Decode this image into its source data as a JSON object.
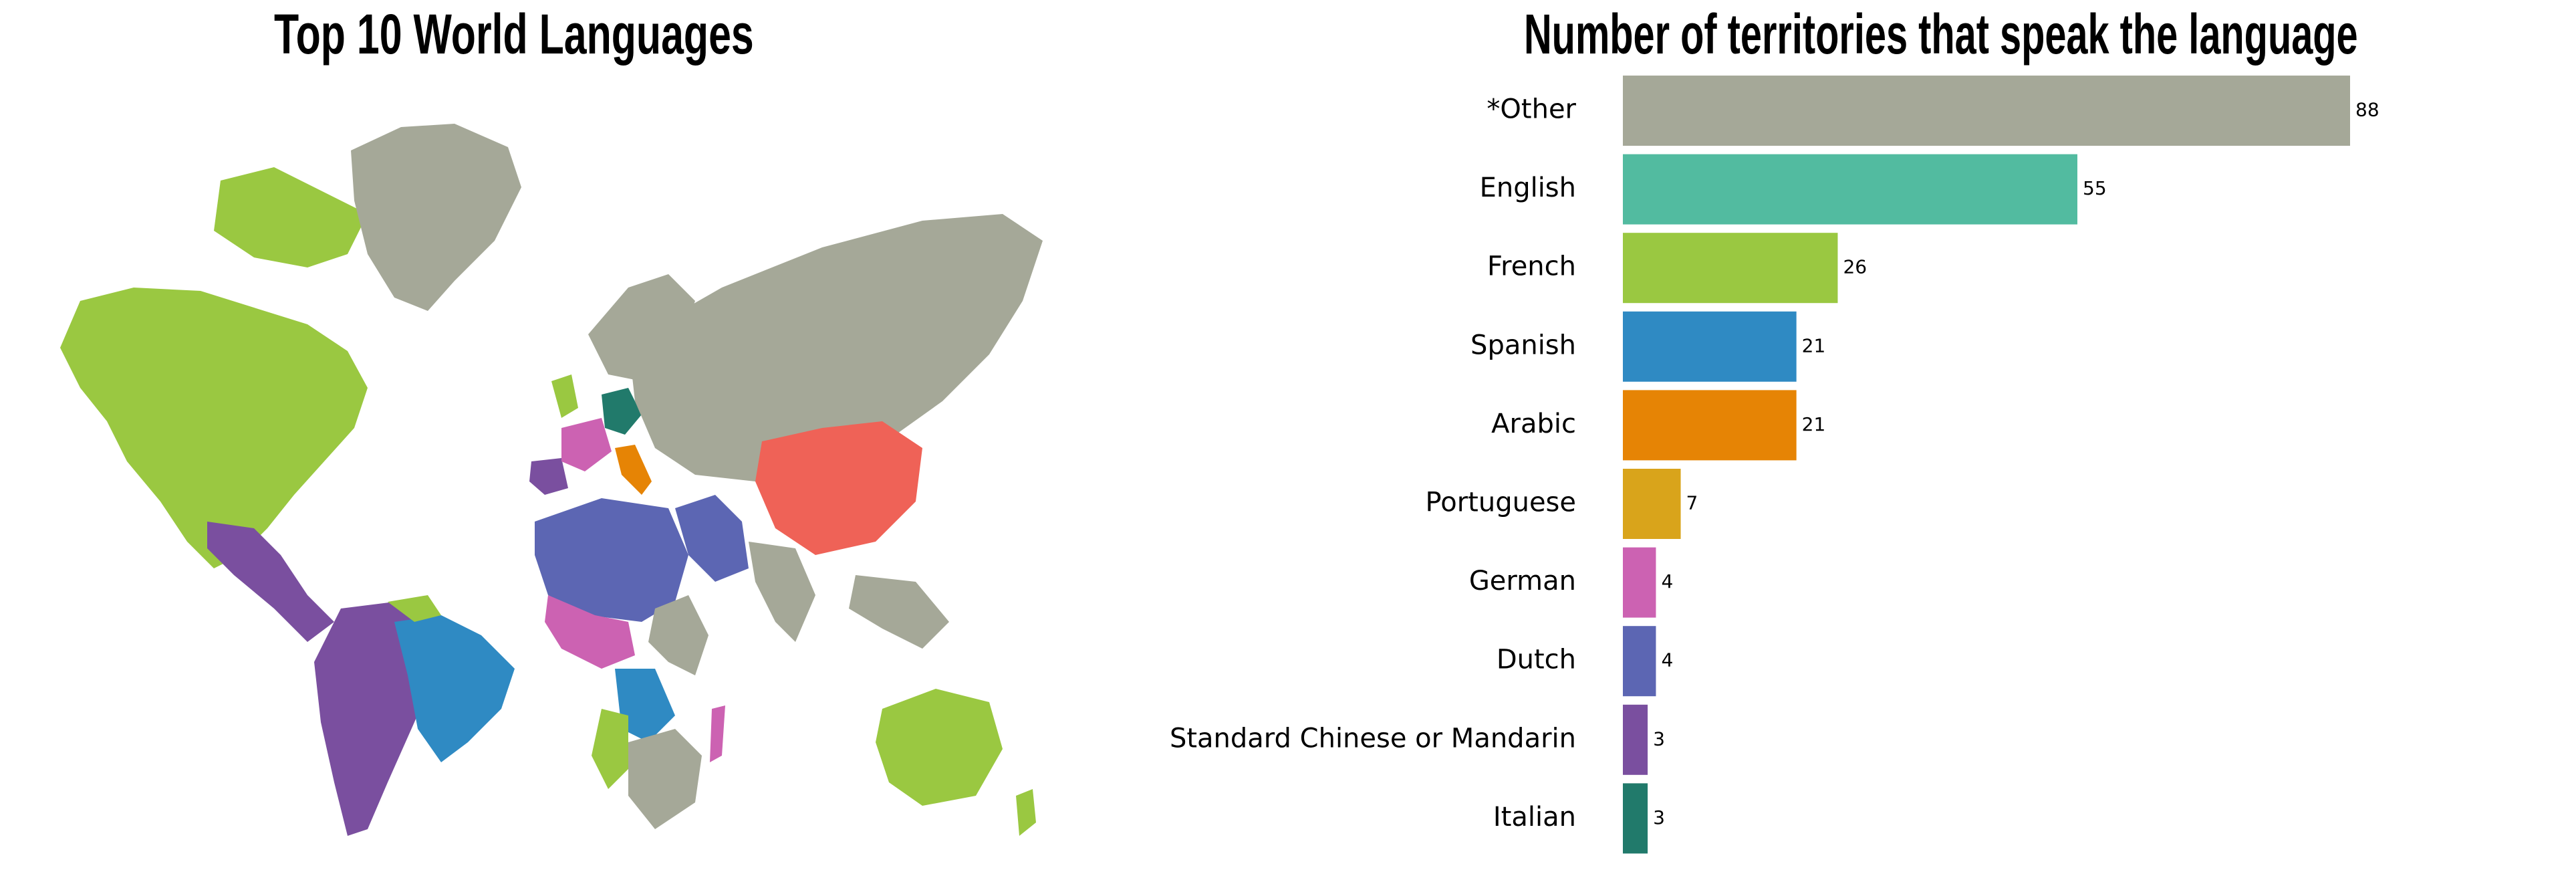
{
  "map": {
    "title": "Top 10 World Languages"
  },
  "colors": {
    "*Other": "#a5a898",
    "English": "#52bba0",
    "French": "#9ac841",
    "Spanish": "#2f8ac3",
    "Arabic": "#e68405",
    "Portuguese": "#d9a41b",
    "German": "#cc62b2",
    "Dutch": "#5c66b3",
    "Standard Chinese or Mandarin": "#7a4f9f",
    "Italian": "#217a6b",
    "Chinese region": "#ef6257"
  },
  "chart_data": {
    "type": "bar",
    "orientation": "horizontal",
    "title": "Number of territories that speak the language",
    "xlabel": "",
    "ylabel": "",
    "grid": false,
    "xlim": [
      0,
      88
    ],
    "categories": [
      "*Other",
      "English",
      "French",
      "Spanish",
      "Arabic",
      "Portuguese",
      "German",
      "Dutch",
      "Standard Chinese or Mandarin",
      "Italian"
    ],
    "values": [
      88,
      55,
      26,
      21,
      21,
      7,
      4,
      4,
      3,
      3
    ],
    "data_labels": [
      "88",
      "55",
      "26",
      "21",
      "21",
      "7",
      "4",
      "4",
      "3",
      "3"
    ]
  }
}
